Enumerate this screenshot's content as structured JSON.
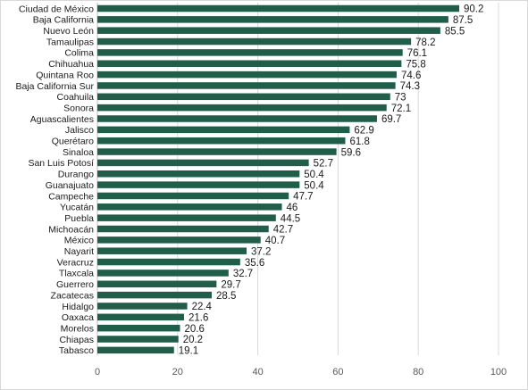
{
  "chart_data": {
    "type": "bar",
    "orientation": "horizontal",
    "categories": [
      "Ciudad de México",
      "Baja California",
      "Nuevo León",
      "Tamaulipas",
      "Colima",
      "Chihuahua",
      "Quintana Roo",
      "Baja California Sur",
      "Coahuila",
      "Sonora",
      "Aguascalientes",
      "Jalisco",
      "Querétaro",
      "Sinaloa",
      "San Luis Potosí",
      "Durango",
      "Guanajuato",
      "Campeche",
      "Yucatán",
      "Puebla",
      "Michoacán",
      "México",
      "Nayarit",
      "Veracruz",
      "Tlaxcala",
      "Guerrero",
      "Zacatecas",
      "Hidalgo",
      "Oaxaca",
      "Morelos",
      "Chiapas",
      "Tabasco"
    ],
    "values": [
      90.2,
      87.5,
      85.5,
      78.2,
      76.1,
      75.8,
      74.6,
      74.3,
      73,
      72.1,
      69.7,
      62.9,
      61.8,
      59.6,
      52.7,
      50.4,
      50.4,
      47.7,
      46,
      44.5,
      42.7,
      40.7,
      37.2,
      35.6,
      32.7,
      29.7,
      28.5,
      22.4,
      21.6,
      20.6,
      20.2,
      19.1
    ],
    "value_labels": [
      "90.2",
      "87.5",
      "85.5",
      "78.2",
      "76.1",
      "75.8",
      "74.6",
      "74.3",
      "73",
      "72.1",
      "69.7",
      "62.9",
      "61.8",
      "59.6",
      "52.7",
      "50.4",
      "50.4",
      "47.7",
      "46",
      "44.5",
      "42.7",
      "40.7",
      "37.2",
      "35.6",
      "32.7",
      "29.7",
      "28.5",
      "22.4",
      "21.6",
      "20.6",
      "20.2",
      "19.1"
    ],
    "xlim": [
      0,
      100
    ],
    "xticks": [
      0,
      20,
      40,
      60,
      80,
      100
    ],
    "grid": true,
    "bar_color": "#215e49",
    "title": "",
    "xlabel": "",
    "ylabel": ""
  }
}
